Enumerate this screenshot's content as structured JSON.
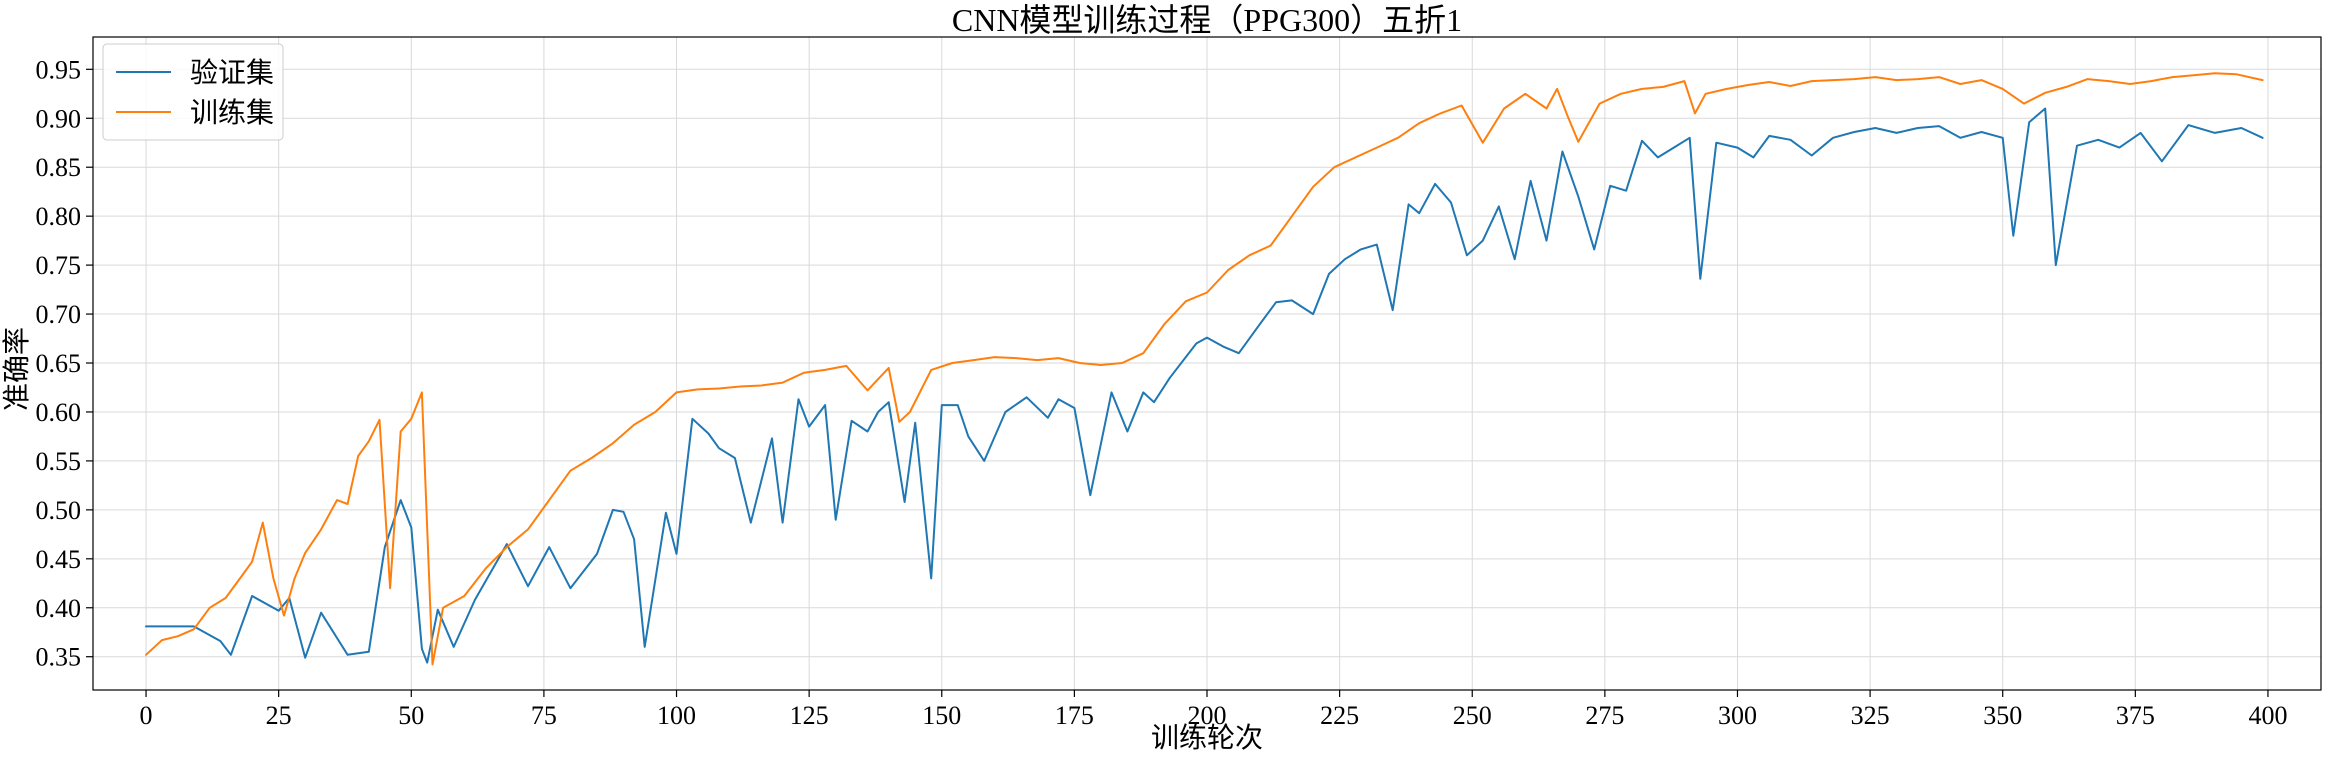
{
  "chart_data": {
    "type": "line",
    "title": "CNN模型训练过程（PPG300）五折1",
    "xlabel": "训练轮次",
    "ylabel": "准确率",
    "xlim": [
      -10,
      410
    ],
    "ylim": [
      0.316,
      0.983
    ],
    "xticks": [
      0,
      25,
      50,
      75,
      100,
      125,
      150,
      175,
      200,
      225,
      250,
      275,
      300,
      325,
      350,
      375,
      400
    ],
    "yticks": [
      0.35,
      0.4,
      0.45,
      0.5,
      0.55,
      0.6,
      0.65,
      0.7,
      0.75,
      0.8,
      0.85,
      0.9,
      0.95
    ],
    "grid": true,
    "legend_position": "top-left",
    "series": [
      {
        "name": "验证集",
        "color": "#1f77b4",
        "x": [
          0,
          9,
          14,
          16,
          20,
          25,
          27,
          30,
          33,
          38,
          42,
          45,
          48,
          50,
          52,
          53,
          55,
          58,
          62,
          68,
          72,
          76,
          80,
          85,
          88,
          90,
          92,
          94,
          98,
          100,
          103,
          106,
          108,
          111,
          114,
          118,
          120,
          123,
          125,
          128,
          130,
          133,
          136,
          138,
          140,
          143,
          145,
          148,
          150,
          153,
          155,
          158,
          162,
          166,
          170,
          172,
          175,
          178,
          182,
          185,
          188,
          190,
          193,
          198,
          200,
          203,
          206,
          210,
          213,
          216,
          220,
          223,
          226,
          229,
          232,
          235,
          238,
          240,
          243,
          246,
          249,
          252,
          255,
          258,
          261,
          264,
          267,
          270,
          273,
          276,
          279,
          282,
          285,
          288,
          291,
          293,
          296,
          300,
          303,
          306,
          310,
          314,
          318,
          322,
          326,
          330,
          334,
          338,
          342,
          346,
          350,
          352,
          355,
          358,
          360,
          364,
          368,
          372,
          376,
          380,
          385,
          390,
          395,
          399
        ],
        "y": [
          0.381,
          0.381,
          0.366,
          0.352,
          0.412,
          0.397,
          0.41,
          0.349,
          0.395,
          0.352,
          0.355,
          0.462,
          0.51,
          0.482,
          0.358,
          0.344,
          0.398,
          0.36,
          0.408,
          0.465,
          0.422,
          0.462,
          0.42,
          0.455,
          0.5,
          0.498,
          0.47,
          0.36,
          0.497,
          0.455,
          0.593,
          0.578,
          0.563,
          0.553,
          0.487,
          0.573,
          0.487,
          0.613,
          0.585,
          0.607,
          0.49,
          0.591,
          0.58,
          0.6,
          0.61,
          0.508,
          0.589,
          0.43,
          0.607,
          0.607,
          0.575,
          0.55,
          0.6,
          0.615,
          0.594,
          0.613,
          0.604,
          0.515,
          0.62,
          0.58,
          0.62,
          0.61,
          0.635,
          0.67,
          0.676,
          0.667,
          0.66,
          0.69,
          0.712,
          0.714,
          0.7,
          0.741,
          0.756,
          0.766,
          0.771,
          0.704,
          0.812,
          0.803,
          0.833,
          0.814,
          0.76,
          0.775,
          0.81,
          0.756,
          0.836,
          0.775,
          0.866,
          0.82,
          0.766,
          0.831,
          0.826,
          0.877,
          0.86,
          0.87,
          0.88,
          0.736,
          0.875,
          0.87,
          0.86,
          0.882,
          0.878,
          0.862,
          0.88,
          0.886,
          0.89,
          0.885,
          0.89,
          0.892,
          0.88,
          0.886,
          0.88,
          0.78,
          0.896,
          0.91,
          0.75,
          0.872,
          0.878,
          0.87,
          0.885,
          0.856,
          0.893,
          0.885,
          0.89,
          0.88
        ]
      },
      {
        "name": "训练集",
        "color": "#ff7f0e",
        "x": [
          0,
          3,
          6,
          9,
          12,
          15,
          18,
          20,
          22,
          24,
          26,
          28,
          30,
          33,
          36,
          38,
          40,
          42,
          44,
          46,
          48,
          50,
          52,
          54,
          56,
          60,
          64,
          68,
          72,
          76,
          80,
          84,
          88,
          92,
          96,
          100,
          104,
          108,
          112,
          116,
          120,
          124,
          128,
          132,
          136,
          140,
          142,
          144,
          148,
          152,
          156,
          160,
          164,
          168,
          172,
          176,
          180,
          184,
          188,
          192,
          196,
          200,
          204,
          208,
          212,
          216,
          220,
          224,
          228,
          232,
          236,
          240,
          244,
          248,
          252,
          256,
          260,
          264,
          266,
          268,
          270,
          274,
          278,
          282,
          286,
          290,
          292,
          294,
          298,
          302,
          306,
          310,
          314,
          318,
          322,
          326,
          330,
          334,
          338,
          342,
          346,
          350,
          354,
          358,
          362,
          366,
          370,
          374,
          378,
          382,
          386,
          390,
          394,
          399
        ],
        "y": [
          0.352,
          0.367,
          0.371,
          0.378,
          0.4,
          0.41,
          0.432,
          0.447,
          0.487,
          0.43,
          0.392,
          0.43,
          0.456,
          0.48,
          0.51,
          0.506,
          0.555,
          0.57,
          0.592,
          0.42,
          0.58,
          0.593,
          0.62,
          0.342,
          0.4,
          0.412,
          0.44,
          0.462,
          0.48,
          0.51,
          0.54,
          0.553,
          0.568,
          0.587,
          0.6,
          0.62,
          0.623,
          0.624,
          0.626,
          0.627,
          0.63,
          0.64,
          0.643,
          0.647,
          0.622,
          0.645,
          0.59,
          0.6,
          0.643,
          0.65,
          0.653,
          0.656,
          0.655,
          0.653,
          0.655,
          0.65,
          0.648,
          0.65,
          0.66,
          0.69,
          0.713,
          0.722,
          0.745,
          0.76,
          0.77,
          0.8,
          0.83,
          0.85,
          0.86,
          0.87,
          0.88,
          0.895,
          0.905,
          0.913,
          0.875,
          0.91,
          0.925,
          0.91,
          0.93,
          0.902,
          0.876,
          0.915,
          0.925,
          0.93,
          0.932,
          0.938,
          0.905,
          0.925,
          0.93,
          0.934,
          0.937,
          0.933,
          0.938,
          0.939,
          0.94,
          0.942,
          0.939,
          0.94,
          0.942,
          0.935,
          0.939,
          0.93,
          0.915,
          0.926,
          0.932,
          0.94,
          0.938,
          0.935,
          0.938,
          0.942,
          0.944,
          0.946,
          0.945,
          0.939
        ]
      }
    ]
  }
}
